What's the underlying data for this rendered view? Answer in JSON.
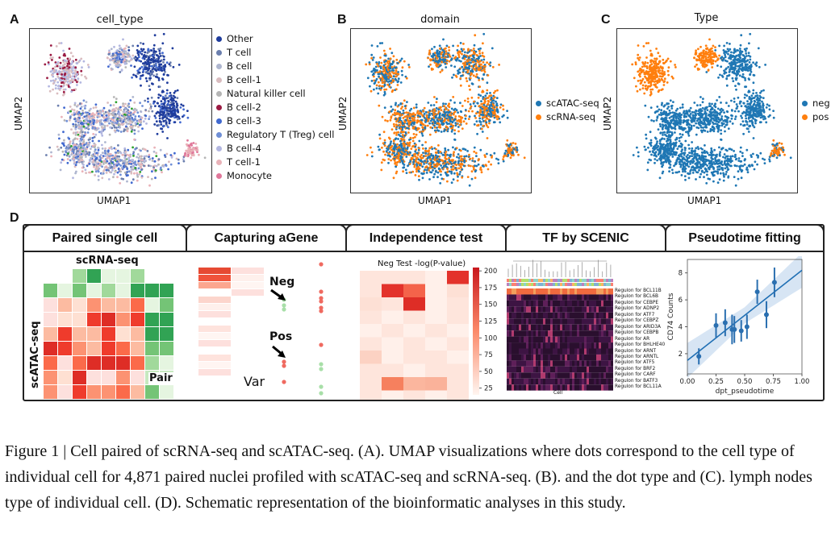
{
  "panel_a": {
    "label": "A",
    "title": "cell_type",
    "xlabel": "UMAP1",
    "ylabel": "UMAP2",
    "legend": [
      {
        "name": "Other",
        "color": "#1f3c9c"
      },
      {
        "name": "T cell",
        "color": "#6b7fae"
      },
      {
        "name": "B cell",
        "color": "#aeb6cf"
      },
      {
        "name": "B cell-1",
        "color": "#d9bcbf"
      },
      {
        "name": "Natural killer cell",
        "color": "#b5b5b5"
      },
      {
        "name": "B cell-2",
        "color": "#9b1b43"
      },
      {
        "name": "B cell-3",
        "color": "#4169d0"
      },
      {
        "name": "Regulatory T (Treg) cell",
        "color": "#6f8fd6"
      },
      {
        "name": "B cell-4",
        "color": "#b3b7e0"
      },
      {
        "name": "T cell-1",
        "color": "#e9b2b8"
      },
      {
        "name": "Monocyte",
        "color": "#e0779a"
      }
    ]
  },
  "panel_b": {
    "label": "B",
    "title": "domain",
    "xlabel": "UMAP1",
    "ylabel": "UMAP2",
    "legend": [
      {
        "name": "scATAC-seq",
        "color": "#1f77b4"
      },
      {
        "name": "scRNA-seq",
        "color": "#ff7f0e"
      }
    ]
  },
  "panel_c": {
    "label": "C",
    "title": "Type",
    "xlabel": "UMAP1",
    "ylabel": "UMAP2",
    "legend": [
      {
        "name": "neg",
        "color": "#1f77b4"
      },
      {
        "name": "pos",
        "color": "#ff7f0e"
      }
    ]
  },
  "panel_d": {
    "label": "D",
    "tabs": [
      "Paired single cell",
      "Capturing aGene",
      "Independence test",
      "TF by SCENIC",
      "Pseudotime fitting"
    ],
    "paired": {
      "top": "scRNA-seq",
      "side": "scATAC-seq",
      "pair": "Pair"
    },
    "agene": {
      "neg": "Neg",
      "pos": "Pos",
      "var": "Var"
    },
    "indep": {
      "title": "Neg Test -log(P-value)",
      "colorbar_ticks": [
        "200",
        "175",
        "150",
        "125",
        "100",
        "75",
        "50",
        "25"
      ]
    },
    "scenic": {
      "regulons": [
        "Regulon for BCL11B",
        "Regulon for BCL6B",
        "Regulon for CEBPE",
        "Regulon for ADNP2",
        "Regulon for ATF7",
        "Regulon for CEBPZ",
        "Regulon for ARID3A",
        "Regulon for CEBPB",
        "Regulon for AR",
        "Regulon for BHLHE40",
        "Regulon for ARNT",
        "Regulon for ARNTL",
        "Regulon for ATF5",
        "Regulon for BRF2",
        "Regulon for CARF",
        "Regulon for BATF3",
        "Regulon for BCL11A"
      ],
      "xlabel": "Cell"
    },
    "pseudotime": {
      "xlabel": "dpt_pseudotime",
      "ylabel": "CD74 Counts",
      "xticks": [
        "0.00",
        "0.25",
        "0.50",
        "0.75",
        "1.00"
      ],
      "yticks": [
        "2",
        "4",
        "6",
        "8"
      ]
    }
  },
  "chart_data": {
    "type": "scatter",
    "xlabel": "dpt_pseudotime",
    "ylabel": "CD74 Counts",
    "xlim": [
      0,
      1
    ],
    "ylim": [
      0.5,
      9
    ],
    "points": [
      {
        "x": 0.1,
        "y": 1.8,
        "err": 0.6
      },
      {
        "x": 0.25,
        "y": 4.1,
        "err": 0.9
      },
      {
        "x": 0.33,
        "y": 4.3,
        "err": 1.0
      },
      {
        "x": 0.39,
        "y": 3.8,
        "err": 1.1
      },
      {
        "x": 0.41,
        "y": 3.8,
        "err": 1.0
      },
      {
        "x": 0.47,
        "y": 3.7,
        "err": 0.8
      },
      {
        "x": 0.52,
        "y": 4.0,
        "err": 0.9
      },
      {
        "x": 0.61,
        "y": 6.6,
        "err": 0.9
      },
      {
        "x": 0.69,
        "y": 4.9,
        "err": 1.0
      },
      {
        "x": 0.76,
        "y": 7.3,
        "err": 1.1
      }
    ],
    "fit": {
      "x": [
        0,
        1
      ],
      "y": [
        1.5,
        8.2
      ]
    }
  },
  "caption": "Figure 1 | Cell paired of scRNA-seq and scATAC-seq. (A). UMAP visualizations where dots correspond to the cell type of individual cell for 4,871 paired nuclei profiled with scATAC-seq and scRNA-seq. (B). and the dot type and (C). lymph nodes type of individual cell. (D). Schematic representation of the bioinformatic analyses in this study."
}
